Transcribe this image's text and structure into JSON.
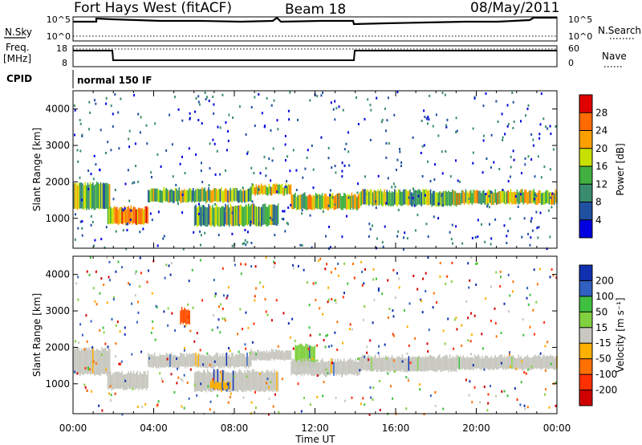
{
  "header": {
    "station": "Fort Hays West (fitACF)",
    "beam": "Beam 18",
    "date": "08/May/2011"
  },
  "status_panels": {
    "nsky_label": "N.Sky",
    "nsky_ticks": [
      "10^5",
      "10^0"
    ],
    "nsearch_label": "N.Search",
    "nsearch_ticks": [
      "10^5",
      "10^0"
    ],
    "freq_label_1": "Freq.",
    "freq_label_2": "[MHz]",
    "freq_ticks": [
      "18",
      "8"
    ],
    "nave_label": "Nave",
    "nave_ticks": [
      "60",
      "0"
    ],
    "cpid_label": "CPID",
    "cpid_value": "normal 150 IF"
  },
  "chart_data": [
    {
      "type": "heatmap",
      "name": "power",
      "ylabel": "Slant Range [km]",
      "yticks": [
        1000,
        2000,
        3000,
        4000
      ],
      "ylim": [
        180,
        4500
      ],
      "xlabel": "Time UT",
      "xticks": [
        "00:00",
        "04:00",
        "08:00",
        "12:00",
        "16:00",
        "20:00",
        "00:00"
      ],
      "colorbar_label": "Power [dB]",
      "colorbar_ticks": [
        "4",
        "8",
        "12",
        "16",
        "20",
        "24",
        "28"
      ],
      "colorbar_colors": [
        "#0000e0",
        "#2050a0",
        "#3a8c6e",
        "#40b040",
        "#c8e000",
        "#ffa000",
        "#ff6a00",
        "#e00000"
      ],
      "bands": [
        {
          "t": [
            0.0,
            1.8
          ],
          "r": [
            1250,
            1950
          ],
          "level": 3
        },
        {
          "t": [
            1.7,
            3.7
          ],
          "r": [
            850,
            1300
          ],
          "level": 5
        },
        {
          "t": [
            3.7,
            8.8
          ],
          "r": [
            1450,
            1800
          ],
          "level": 3
        },
        {
          "t": [
            8.8,
            10.8
          ],
          "r": [
            1650,
            1900
          ],
          "level": 4
        },
        {
          "t": [
            6.0,
            10.2
          ],
          "r": [
            800,
            1350
          ],
          "level": 3
        },
        {
          "t": [
            10.8,
            14.2
          ],
          "r": [
            1250,
            1650
          ],
          "level": 4
        },
        {
          "t": [
            14.2,
            19.0
          ],
          "r": [
            1350,
            1750
          ],
          "level": 3
        },
        {
          "t": [
            19.0,
            24.0
          ],
          "r": [
            1400,
            1750
          ],
          "level": 4
        }
      ]
    },
    {
      "type": "heatmap",
      "name": "velocity",
      "ylabel": "Slant Range [km]",
      "yticks": [
        1000,
        2000,
        3000,
        4000
      ],
      "ylim": [
        180,
        4500
      ],
      "xlabel": "Time UT",
      "xticks": [
        "00:00",
        "04:00",
        "08:00",
        "12:00",
        "16:00",
        "20:00",
        "00:00"
      ],
      "colorbar_label": "Velocity [m s⁻¹]",
      "colorbar_ticks": [
        "200",
        "100",
        "50",
        "15",
        "-15",
        "-50",
        "-100",
        "-200"
      ],
      "colorbar_colors": [
        "#1030b0",
        "#3060c0",
        "#40c040",
        "#80d040",
        "#c8c8c0",
        "#ffb000",
        "#ff7000",
        "#ff3000",
        "#d00000"
      ],
      "bands": [
        {
          "t": [
            0.0,
            1.8
          ],
          "r": [
            1250,
            1950
          ],
          "color": "#c8c8c0"
        },
        {
          "t": [
            1.7,
            3.7
          ],
          "r": [
            850,
            1300
          ],
          "color": "#c8c8c0"
        },
        {
          "t": [
            3.7,
            8.8
          ],
          "r": [
            1450,
            1800
          ],
          "color": "#c8c8c0"
        },
        {
          "t": [
            8.8,
            10.8
          ],
          "r": [
            1650,
            1900
          ],
          "color": "#c8c8c0"
        },
        {
          "t": [
            6.0,
            10.2
          ],
          "r": [
            800,
            1350
          ],
          "color": "#c8c8c0"
        },
        {
          "t": [
            6.8,
            7.8
          ],
          "r": [
            850,
            1050
          ],
          "color": "#ffb000"
        },
        {
          "t": [
            11.0,
            12.0
          ],
          "r": [
            1450,
            2050
          ],
          "color": "#80d040"
        },
        {
          "t": [
            10.8,
            14.2
          ],
          "r": [
            1250,
            1650
          ],
          "color": "#c8c8c0"
        },
        {
          "t": [
            14.2,
            19.0
          ],
          "r": [
            1350,
            1750
          ],
          "color": "#c8c8c0"
        },
        {
          "t": [
            19.0,
            24.0
          ],
          "r": [
            1400,
            1750
          ],
          "color": "#c8c8c0"
        },
        {
          "t": [
            5.3,
            5.8
          ],
          "r": [
            2650,
            3050
          ],
          "color": "#ff5000"
        }
      ]
    }
  ]
}
